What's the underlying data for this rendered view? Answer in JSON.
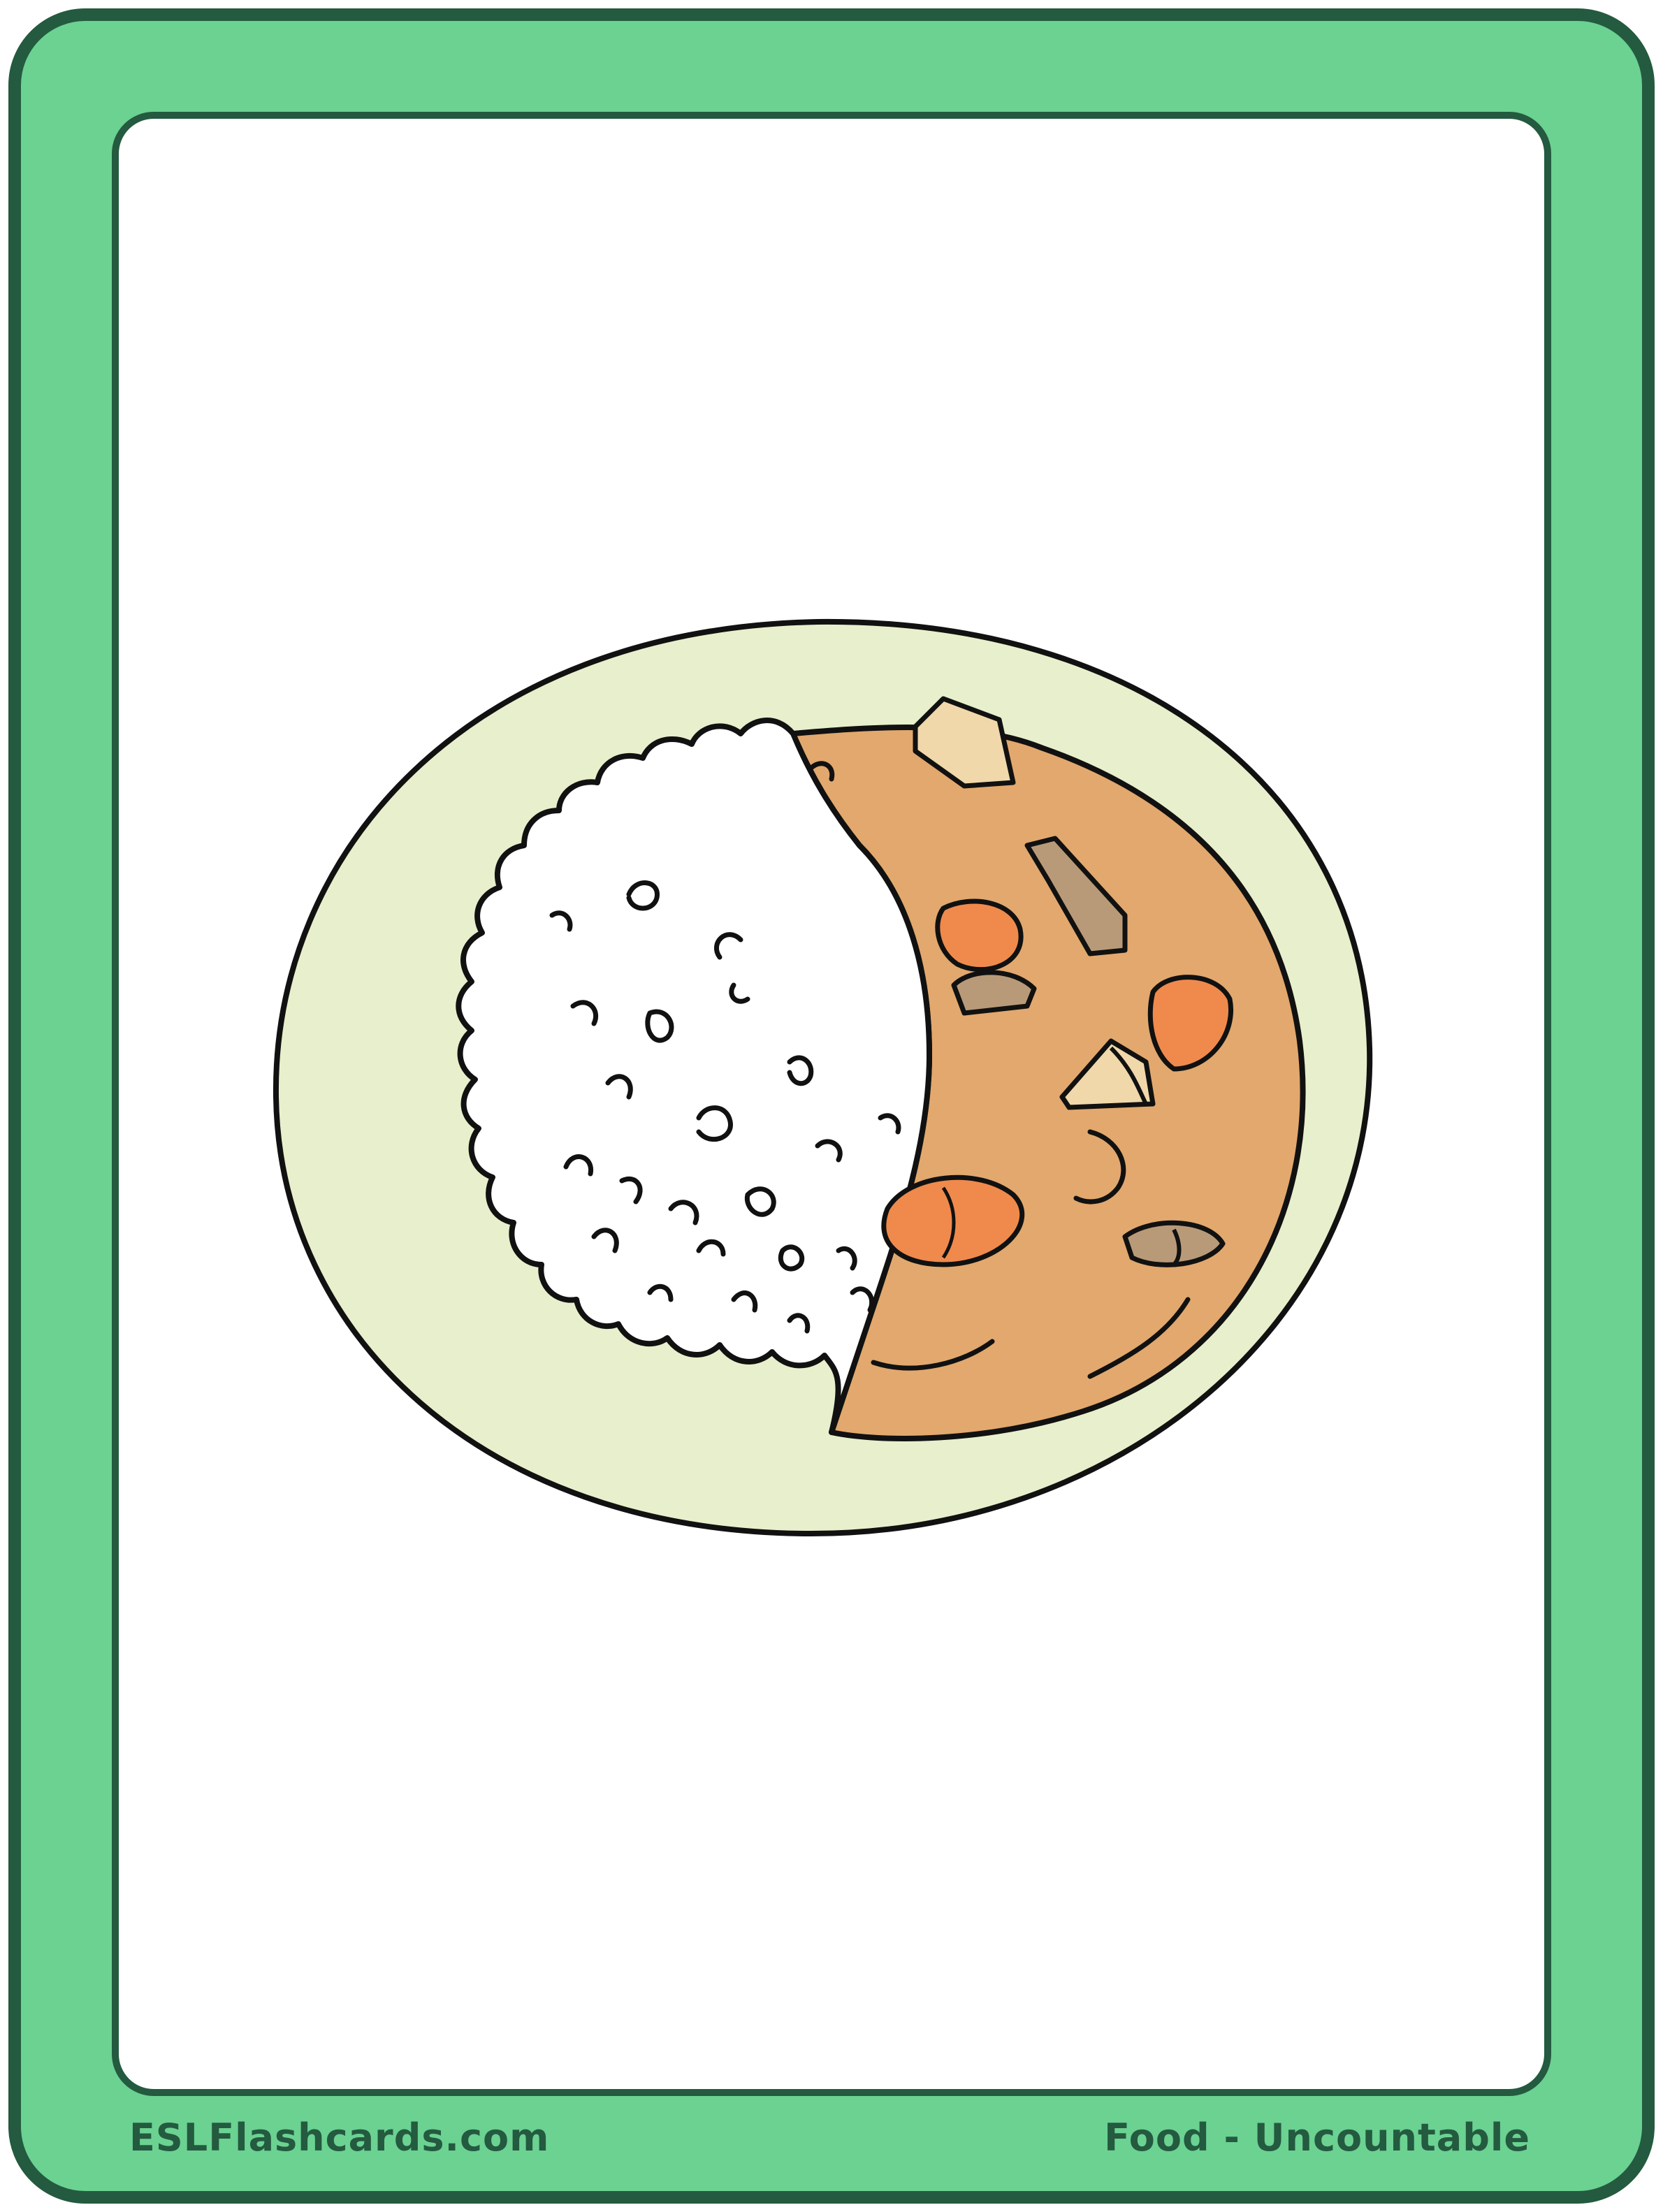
{
  "card": {
    "website": "ESLFlashcards.com",
    "category": "Food - Uncountable"
  },
  "colors": {
    "frame_outline": "#245a3f",
    "frame_fill": "#6bd292",
    "panel": "#ffffff",
    "plate": "#e8efcc",
    "curry": "#e2a86d",
    "carrot": "#ef8a4c",
    "potato": "#f0d8aa",
    "meat": "#b99a78"
  },
  "illustration": {
    "icon": "curry-rice-icon"
  }
}
